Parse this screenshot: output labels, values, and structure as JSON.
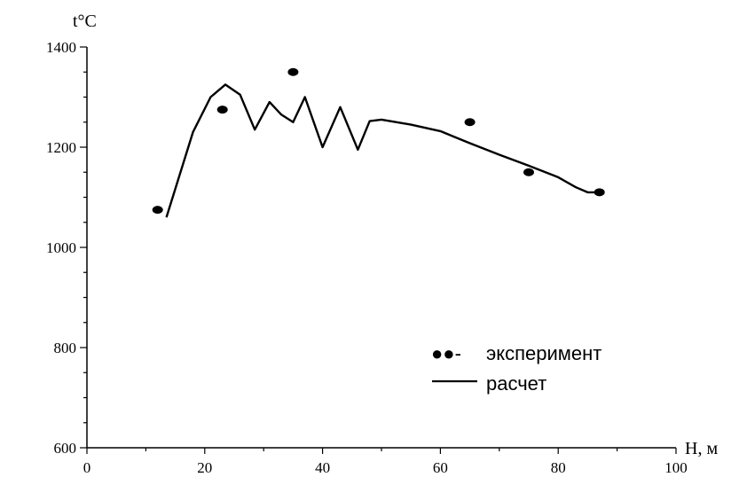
{
  "chart_data": {
    "type": "line",
    "xlabel": "H, м",
    "ylabel": "t°C",
    "xlim": [
      0,
      100
    ],
    "ylim": [
      600,
      1400
    ],
    "x_ticks": [
      0,
      20,
      40,
      60,
      80,
      100
    ],
    "x_tick_labels": [
      "0",
      "20",
      "40",
      "60",
      "80",
      "100"
    ],
    "y_ticks": [
      600,
      800,
      1000,
      1200,
      1400
    ],
    "y_tick_labels": [
      "600",
      "800",
      "1000",
      "1200",
      "1400"
    ],
    "grid": false,
    "legend_position": "bottom-right",
    "legend": {
      "markers_label": "●●-",
      "experiment_label": "эксперимент",
      "calc_label": "расчет"
    },
    "series": [
      {
        "name": "эксперимент",
        "kind": "scatter",
        "x": [
          12,
          23,
          35,
          65,
          75,
          87
        ],
        "y": [
          1075,
          1275,
          1350,
          1250,
          1150,
          1110
        ]
      },
      {
        "name": "расчет",
        "kind": "line",
        "x": [
          13.5,
          18,
          21,
          23.5,
          26,
          28.5,
          31,
          33,
          35,
          37,
          40,
          43,
          46,
          48,
          50,
          55,
          60,
          65,
          70,
          75,
          80,
          83,
          85,
          87
        ],
        "y": [
          1060,
          1230,
          1300,
          1325,
          1305,
          1235,
          1290,
          1265,
          1250,
          1300,
          1200,
          1280,
          1195,
          1252,
          1255,
          1245,
          1232,
          1208,
          1185,
          1163,
          1140,
          1120,
          1110,
          1110
        ]
      }
    ]
  }
}
